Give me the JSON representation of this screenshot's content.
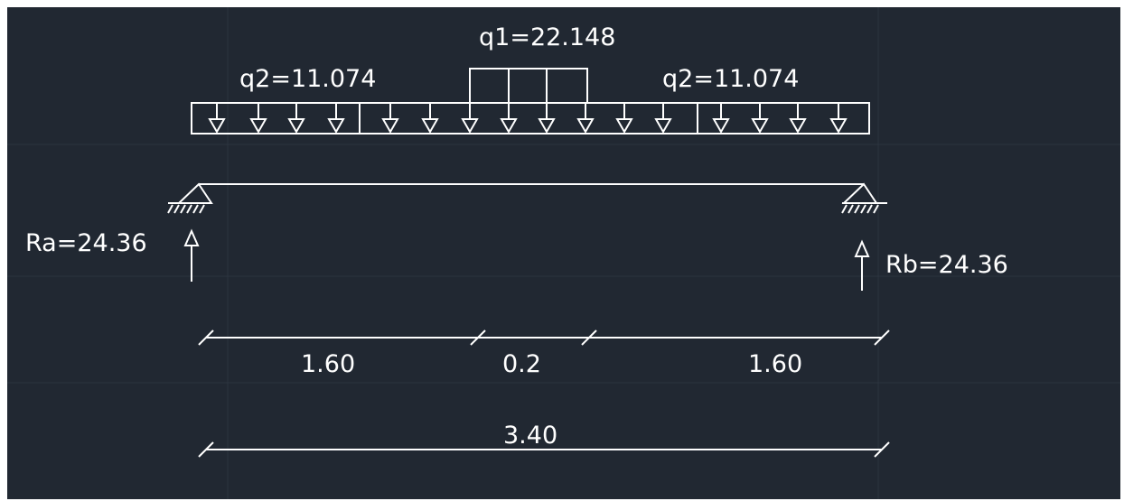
{
  "loads": {
    "q1_label": "q1=22.148",
    "q2_left_label": "q2=11.074",
    "q2_right_label": "q2=11.074"
  },
  "reactions": {
    "ra_label": "Ra=24.36",
    "rb_label": "Rb=24.36"
  },
  "dimensions": {
    "left_segment": "1.60",
    "middle_segment": "0.2",
    "right_segment": "1.60",
    "total_length": "3.40"
  },
  "colors": {
    "background": "#212832",
    "lines": "#ffffff"
  }
}
